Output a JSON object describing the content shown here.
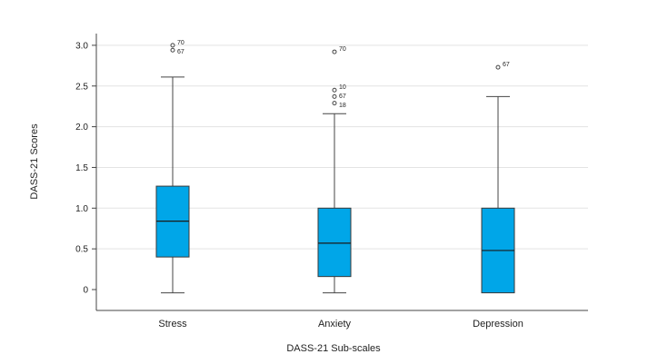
{
  "chart_data": {
    "type": "boxplot",
    "xlabel": "DASS-21 Sub-scales",
    "ylabel": "DASS-21 Scores",
    "ylim": [
      -0.25,
      3.05
    ],
    "yticks": [
      {
        "value": 0,
        "label": "0"
      },
      {
        "value": 0.5,
        "label": "0.5"
      },
      {
        "value": 1.0,
        "label": "1.0"
      },
      {
        "value": 1.5,
        "label": "1.5"
      },
      {
        "value": 2.0,
        "label": "2.0"
      },
      {
        "value": 2.5,
        "label": "2.5"
      },
      {
        "value": 3.0,
        "label": "3.0"
      }
    ],
    "grid": true,
    "box_color": "#00a6e8",
    "categories": [
      "Stress",
      "Anxiety",
      "Depression"
    ],
    "boxes": [
      {
        "name": "Stress",
        "whisker_low": -0.04,
        "q1": 0.4,
        "median": 0.84,
        "q3": 1.27,
        "whisker_high": 2.61,
        "outliers": [
          {
            "value": 3.0,
            "label": "70"
          },
          {
            "value": 2.94,
            "label": "67"
          }
        ]
      },
      {
        "name": "Anxiety",
        "whisker_low": -0.04,
        "q1": 0.16,
        "median": 0.57,
        "q3": 1.0,
        "whisker_high": 2.16,
        "outliers": [
          {
            "value": 2.92,
            "label": "70"
          },
          {
            "value": 2.45,
            "label": "10"
          },
          {
            "value": 2.37,
            "label": "67"
          },
          {
            "value": 2.29,
            "label": "18"
          }
        ]
      },
      {
        "name": "Depression",
        "whisker_low": -0.04,
        "q1": -0.04,
        "median": 0.48,
        "q3": 1.0,
        "whisker_high": 2.37,
        "outliers": [
          {
            "value": 2.73,
            "label": "67"
          }
        ]
      }
    ]
  }
}
